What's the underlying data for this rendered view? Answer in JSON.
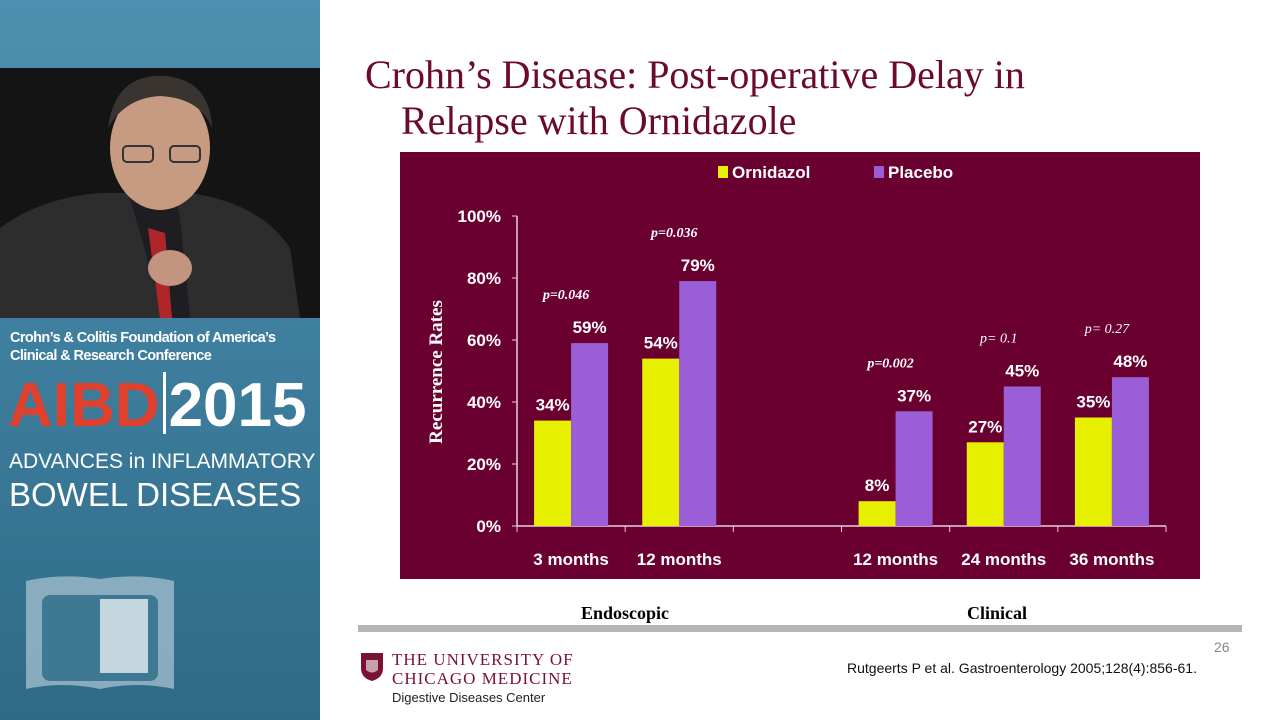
{
  "sidebar": {
    "conference_line1": "Crohn’s & Colitis Foundation of America’s",
    "conference_line2": "Clinical & Research Conference",
    "brand_acronym": "AIBD",
    "brand_year": "2015",
    "subtitle_line1": "ADVANCES in INFLAMMATORY",
    "subtitle_line2": "BOWEL DISEASES"
  },
  "slide": {
    "title_line1": "Crohn’s Disease: Post-operative Delay in",
    "title_line2": "Relapse with Ornidazole",
    "group_labels": [
      "Endoscopic",
      "Clinical"
    ],
    "page_number": "26",
    "citation": "Rutgeerts P et al. Gastroenterology 2005;128(4):856-61.",
    "institution_line1": "THE UNIVERSITY OF",
    "institution_line2": "CHICAGO MEDICINE",
    "department": "Digestive Diseases Center"
  },
  "colors": {
    "chart_bg": "#6a0030",
    "ornidazol": "#e6f000",
    "placebo": "#9a5fd6",
    "title": "#6b0a2a"
  },
  "chart_data": {
    "type": "bar",
    "ylabel": "Recurrence Rates",
    "ylim": [
      0,
      100
    ],
    "yticks": [
      "0%",
      "20%",
      "40%",
      "60%",
      "80%",
      "100%"
    ],
    "categories": [
      "3 months",
      "12 months",
      "",
      "12 months",
      "24 months",
      "36 months"
    ],
    "series": [
      {
        "name": "Ornidazol",
        "values": [
          34,
          54,
          null,
          8,
          27,
          35
        ],
        "labels": [
          "34%",
          "54%",
          "",
          "8%",
          "27%",
          "35%"
        ]
      },
      {
        "name": "Placebo",
        "values": [
          59,
          79,
          null,
          37,
          45,
          48
        ],
        "labels": [
          "59%",
          "79%",
          "",
          "37%",
          "45%",
          "48%"
        ]
      }
    ],
    "p_values": [
      "p=0.046",
      "p=0.036",
      "",
      "p=0.002",
      "p= 0.1",
      "p= 0.27"
    ],
    "legend": "top-center",
    "grid": false
  }
}
